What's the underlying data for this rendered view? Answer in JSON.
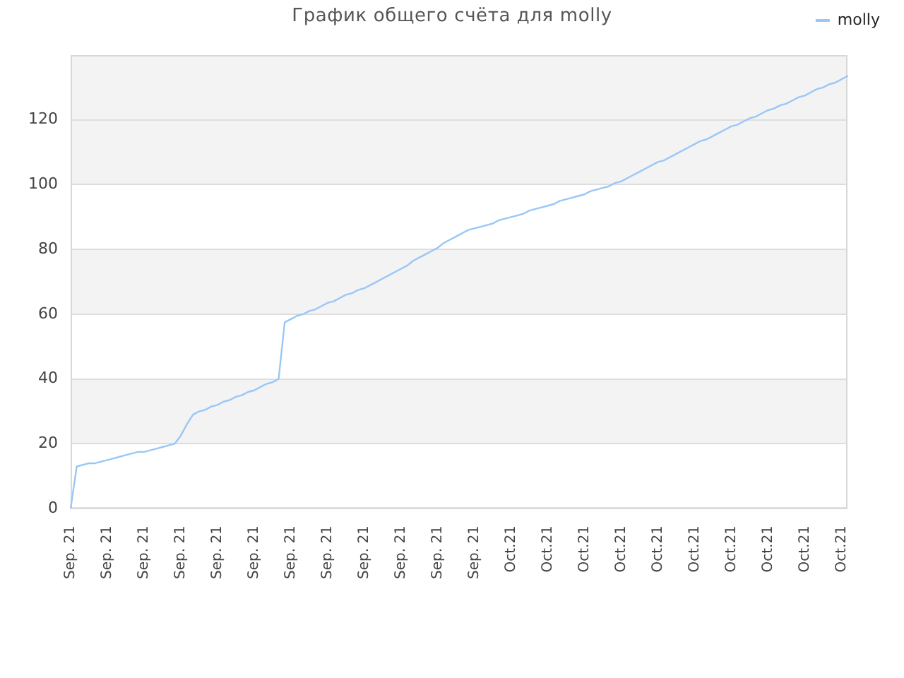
{
  "chart_data": {
    "type": "line",
    "title": "График общего счёта для molly",
    "categories": [
      "Sep. 21",
      null,
      null,
      null,
      null,
      null,
      "Sep. 21",
      null,
      null,
      null,
      null,
      null,
      "Sep. 21",
      null,
      null,
      null,
      null,
      null,
      "Sep. 21",
      null,
      null,
      null,
      null,
      null,
      "Sep. 21",
      null,
      null,
      null,
      null,
      null,
      "Sep. 21",
      null,
      null,
      null,
      null,
      null,
      "Sep. 21",
      null,
      null,
      null,
      null,
      null,
      "Sep. 21",
      null,
      null,
      null,
      null,
      null,
      "Sep. 21",
      null,
      null,
      null,
      null,
      null,
      "Sep. 21",
      null,
      null,
      null,
      null,
      null,
      "Sep. 21",
      null,
      null,
      null,
      null,
      null,
      "Sep. 21",
      null,
      null,
      null,
      null,
      null,
      "Oct.21",
      null,
      null,
      null,
      null,
      null,
      "Oct.21",
      null,
      null,
      null,
      null,
      null,
      "Oct.21",
      null,
      null,
      null,
      null,
      null,
      "Oct.21",
      null,
      null,
      null,
      null,
      null,
      "Oct.21",
      null,
      null,
      null,
      null,
      null,
      "Oct.21",
      null,
      null,
      null,
      null,
      null,
      "Oct.21",
      null,
      null,
      null,
      null,
      null,
      "Oct.21",
      null,
      null,
      null,
      null,
      null,
      "Oct.21",
      null,
      null,
      null,
      null,
      null,
      "Oct.21",
      null
    ],
    "series": [
      {
        "name": "molly",
        "color": "#99c7f6",
        "values": [
          0,
          13,
          13.5,
          14,
          14,
          14.5,
          15,
          15.5,
          16,
          16.5,
          17,
          17.5,
          17.5,
          18,
          18.5,
          19,
          19.5,
          20,
          22.5,
          26,
          29,
          30,
          30.5,
          31.5,
          32,
          33,
          33.5,
          34.5,
          35,
          36,
          36.5,
          37.5,
          38.5,
          39,
          40,
          57.5,
          58.5,
          59.5,
          60,
          61,
          61.5,
          62.5,
          63.5,
          64,
          65,
          66,
          66.5,
          67.5,
          68,
          69,
          70,
          71,
          72,
          73,
          74,
          75,
          76.5,
          77.5,
          78.5,
          79.5,
          80.5,
          82,
          83,
          84,
          85,
          86,
          86.5,
          87,
          87.5,
          88,
          89,
          89.5,
          90,
          90.5,
          91,
          92,
          92.5,
          93,
          93.5,
          94,
          95,
          95.5,
          96,
          96.5,
          97,
          98,
          98.5,
          99,
          99.5,
          100.5,
          101,
          102,
          103,
          104,
          105,
          106,
          107,
          107.5,
          108.5,
          109.5,
          110.5,
          111.5,
          112.5,
          113.5,
          114,
          115,
          116,
          117,
          118,
          118.5,
          119.5,
          120.5,
          121,
          122,
          123,
          123.5,
          124.5,
          125,
          126,
          127,
          127.5,
          128.5,
          129.5,
          130,
          131,
          131.5,
          132.5,
          133.5
        ]
      }
    ],
    "ylim": [
      0,
      140
    ],
    "yticks": [
      0,
      20,
      40,
      60,
      80,
      100,
      120
    ],
    "grid": "y",
    "legend": "top right",
    "marker": "none"
  }
}
